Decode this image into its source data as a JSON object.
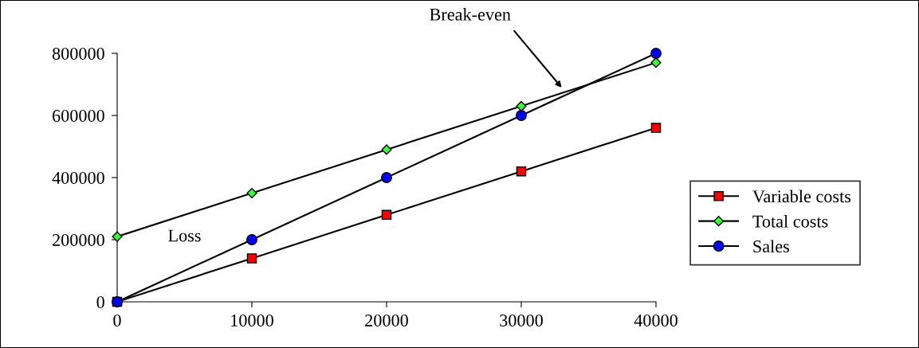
{
  "chart_data": {
    "type": "line",
    "x": [
      0,
      10000,
      20000,
      30000,
      40000
    ],
    "series": [
      {
        "name": "Variable costs",
        "color": "#ff0000",
        "marker": "square",
        "values": [
          0,
          140000,
          280000,
          420000,
          560000
        ]
      },
      {
        "name": "Total costs",
        "color": "#33ff33",
        "marker": "diamond",
        "values": [
          210000,
          350000,
          490000,
          630000,
          770000
        ]
      },
      {
        "name": "Sales",
        "color": "#0000ff",
        "marker": "circle",
        "values": [
          0,
          200000,
          400000,
          600000,
          800000
        ]
      }
    ],
    "xlim": [
      0,
      40000
    ],
    "xticks": [
      0,
      10000,
      20000,
      30000,
      40000
    ],
    "ylim": [
      0,
      800000
    ],
    "yticks": [
      0,
      200000,
      400000,
      600000,
      800000
    ],
    "annotations": [
      "Break-even",
      "Loss"
    ],
    "grid": false,
    "legend": "right",
    "line_style": "solid"
  }
}
